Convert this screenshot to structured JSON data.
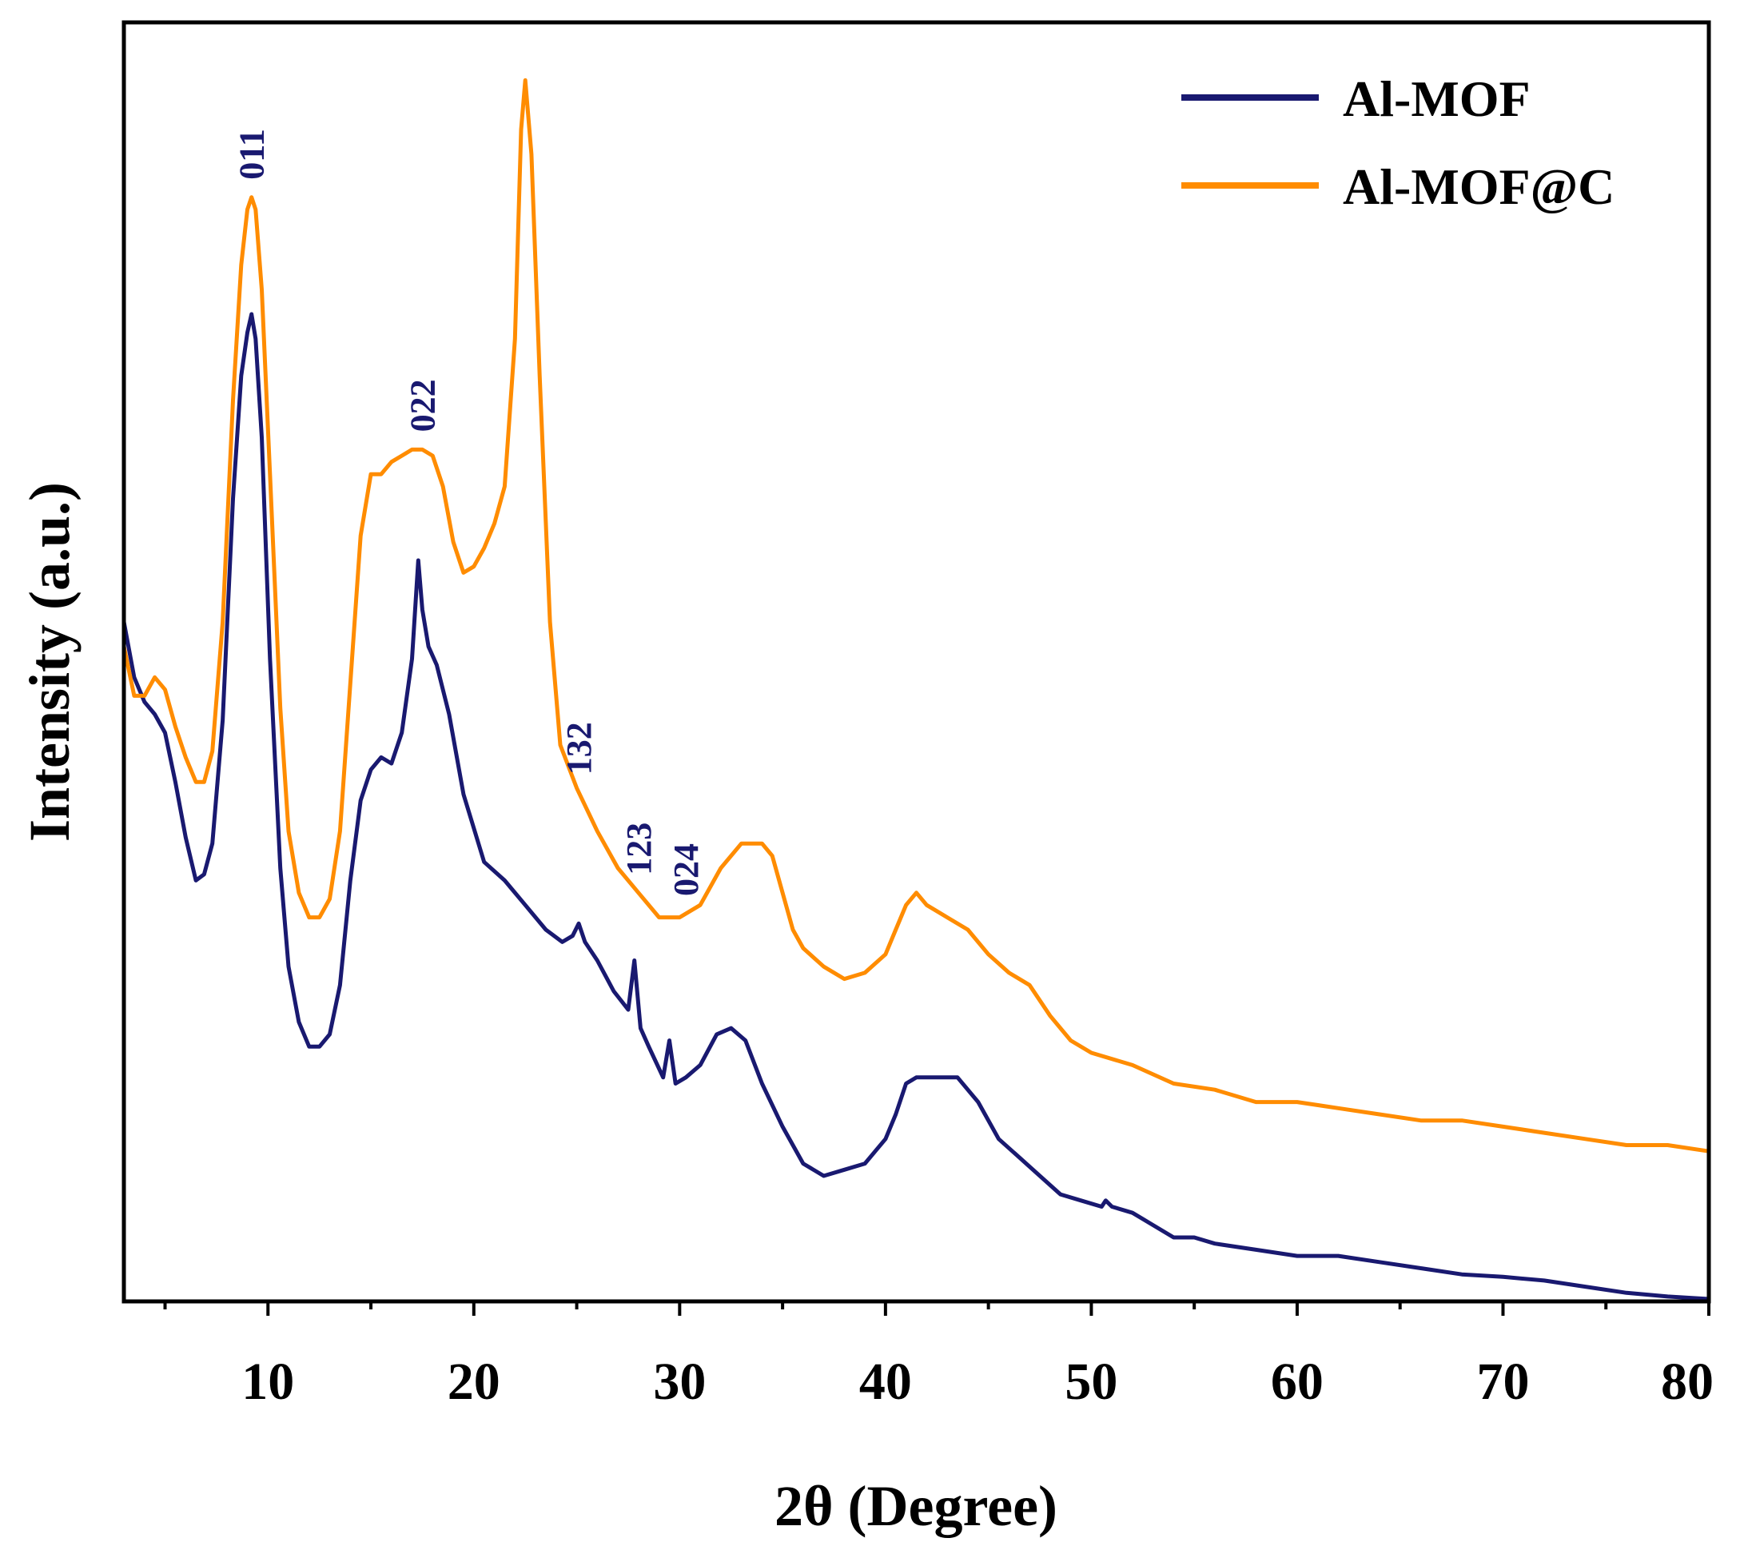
{
  "chart_data": {
    "type": "line",
    "title": "",
    "xlabel": "2θ (Degree)",
    "ylabel": "Intensity (a.u.)",
    "xlim": [
      3,
      80
    ],
    "ylim": [
      0,
      100
    ],
    "xticks": [
      10,
      20,
      30,
      40,
      50,
      60,
      70,
      80
    ],
    "xtick_labels": [
      "10",
      "20",
      "30",
      "40",
      "50",
      "60",
      "70",
      "80"
    ],
    "yticks_shown": false,
    "legend_position": "top-right",
    "series": [
      {
        "name": "Al-MOF",
        "color": "#191970",
        "x": [
          3,
          3.5,
          4,
          4.5,
          5,
          5.5,
          6,
          6.5,
          6.9,
          7.3,
          7.8,
          8.3,
          8.7,
          9.0,
          9.2,
          9.4,
          9.7,
          10.1,
          10.6,
          11.0,
          11.5,
          12.0,
          12.5,
          13.0,
          13.5,
          14.0,
          14.5,
          15.0,
          15.5,
          16.0,
          16.5,
          17.0,
          17.3,
          17.5,
          17.8,
          18.2,
          18.8,
          19.5,
          20.5,
          21.5,
          22.5,
          23.5,
          24.3,
          24.8,
          25.1,
          25.4,
          26.0,
          26.8,
          27.5,
          27.8,
          28.1,
          28.5,
          29.2,
          29.5,
          29.8,
          30.3,
          31.0,
          31.8,
          32.5,
          33.2,
          34.0,
          35.0,
          36.0,
          37.0,
          38.0,
          39.0,
          39.5,
          40.0,
          40.5,
          41.0,
          41.5,
          42.5,
          43.5,
          44.5,
          45.5,
          46.5,
          47.5,
          48.5,
          49.5,
          50.5,
          50.7,
          51.0,
          52.0,
          53.0,
          54.0,
          55.0,
          56.0,
          58.0,
          60.0,
          62.0,
          64.0,
          66.0,
          68.0,
          70.0,
          72.0,
          74.0,
          76.0,
          78.0,
          80.0
        ],
        "values": [
          55,
          50.5,
          48.5,
          47.5,
          46,
          42,
          37.5,
          34,
          34.5,
          37,
          47,
          65,
          75,
          78.5,
          80,
          78,
          70,
          52,
          35,
          27,
          22.5,
          20.5,
          20.5,
          21.5,
          25.5,
          34,
          40.5,
          43,
          44,
          43.5,
          46,
          52,
          60,
          56,
          53,
          51.5,
          47.5,
          41,
          35.5,
          34,
          32,
          30,
          29,
          29.5,
          30.5,
          29,
          27.5,
          25,
          23.5,
          27.5,
          22,
          20.5,
          18,
          21,
          17.5,
          18,
          19,
          21.5,
          22,
          21,
          17.5,
          14,
          11,
          10,
          10.5,
          11,
          12,
          13,
          15,
          17.5,
          18,
          18,
          18,
          16,
          13,
          11.5,
          10,
          8.5,
          8,
          7.5,
          8,
          7.5,
          7,
          6,
          5,
          5,
          4.5,
          4,
          3.5,
          3.5,
          3,
          2.5,
          2,
          1.8,
          1.5,
          1,
          0.5,
          0.2,
          0
        ]
      },
      {
        "name": "Al-MOF@C",
        "color": "#FF8C00",
        "x": [
          3,
          3.5,
          4,
          4.5,
          5,
          5.5,
          6,
          6.5,
          6.9,
          7.3,
          7.8,
          8.3,
          8.7,
          9.0,
          9.2,
          9.4,
          9.7,
          10.1,
          10.6,
          11.0,
          11.5,
          12.0,
          12.5,
          13.0,
          13.5,
          14.0,
          14.5,
          15.0,
          15.5,
          16.0,
          16.5,
          17.0,
          17.5,
          18.0,
          18.5,
          19.0,
          19.5,
          20.0,
          20.5,
          21.0,
          21.5,
          22.0,
          22.3,
          22.5,
          22.8,
          23.2,
          23.7,
          24.2,
          25.0,
          26.0,
          27.0,
          28.0,
          29.0,
          30.0,
          31.0,
          32.0,
          33.0,
          34.0,
          34.5,
          35.0,
          35.5,
          36.0,
          37.0,
          38.0,
          39.0,
          40.0,
          40.5,
          41.0,
          41.5,
          42.0,
          43.0,
          44.0,
          45.0,
          46.0,
          47.0,
          48.0,
          49.0,
          50.0,
          52.0,
          54.0,
          56.0,
          58.0,
          60.0,
          62.0,
          64.0,
          66.0,
          68.0,
          70.0,
          72.0,
          74.0,
          76.0,
          78.0,
          80.0
        ],
        "values": [
          53,
          49,
          49,
          50.5,
          49.5,
          46.5,
          44,
          42,
          42,
          44.5,
          55,
          73,
          84,
          88.5,
          89.5,
          88.5,
          82,
          67,
          48,
          38,
          33,
          31,
          31,
          32.5,
          38,
          50,
          62,
          67,
          67,
          68,
          68.5,
          69,
          69,
          68.5,
          66,
          61.5,
          59,
          59.5,
          61,
          63,
          66,
          78,
          95,
          99,
          93,
          75,
          55,
          45,
          41.5,
          38,
          35,
          33,
          31,
          31,
          32,
          35,
          37,
          37,
          36,
          33,
          30,
          28.5,
          27,
          26,
          26.5,
          28,
          30,
          32,
          33,
          32,
          31,
          30,
          28,
          26.5,
          25.5,
          23,
          21,
          20,
          19,
          17.5,
          17,
          16,
          16,
          15.5,
          15,
          14.5,
          14.5,
          14,
          13.5,
          13,
          12.5,
          12.5,
          12
        ]
      }
    ],
    "annotations": [
      {
        "text": "011",
        "x": 9.2,
        "series": "Al-MOF"
      },
      {
        "text": "022",
        "x": 17.5,
        "series": "Al-MOF"
      },
      {
        "text": "132",
        "x": 25.1,
        "series": "Al-MOF"
      },
      {
        "text": "123",
        "x": 28.0,
        "series": "Al-MOF"
      },
      {
        "text": "024",
        "x": 30.3,
        "series": "Al-MOF"
      }
    ]
  }
}
